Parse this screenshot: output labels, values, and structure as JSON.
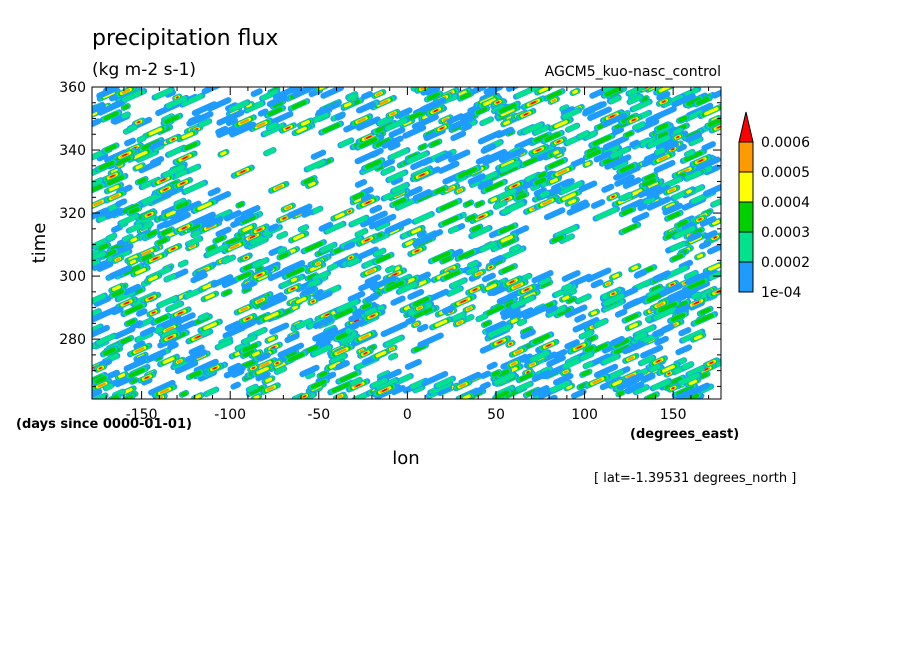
{
  "chart_data": {
    "type": "heatmap",
    "title": "precipitation flux",
    "units": "(kg m-2 s-1)",
    "run_label": "AGCM5_kuo-nasc_control",
    "xlabel": "lon",
    "x_units": "(degrees_east)",
    "ylabel": "time",
    "y_units": "(days since 0000-01-01)",
    "note": "[ lat=-1.39531 degrees_north ]",
    "xlim": [
      -178,
      177
    ],
    "ylim": [
      261,
      360
    ],
    "x_ticks": [
      -150,
      -100,
      -50,
      0,
      50,
      100,
      150
    ],
    "x_tick_labels": [
      "-150",
      "-100",
      "-50",
      "0",
      "50",
      "100",
      "150"
    ],
    "y_ticks": [
      280,
      300,
      320,
      340,
      360
    ],
    "y_tick_labels": [
      "280",
      "300",
      "320",
      "340",
      "360"
    ],
    "colorbar": {
      "levels": [
        0.0001,
        0.0002,
        0.0003,
        0.0004,
        0.0005,
        0.0006
      ],
      "level_labels": [
        "1e-04",
        "0.0002",
        "0.0003",
        "0.0004",
        "0.0005",
        "0.0006"
      ],
      "colors": [
        "#1e9bff",
        "#00e28c",
        "#00d000",
        "#ffff00",
        "#ff9a00",
        "#ff0000"
      ],
      "below_color": "#ffffff",
      "extend": "max"
    },
    "field_pattern": "eastward-tilted streaks of intermittent rainfall filling most of the domain, with fewer bands near 325-345 days between -120 and -30 and near 305-320 days between 60 and 150"
  }
}
